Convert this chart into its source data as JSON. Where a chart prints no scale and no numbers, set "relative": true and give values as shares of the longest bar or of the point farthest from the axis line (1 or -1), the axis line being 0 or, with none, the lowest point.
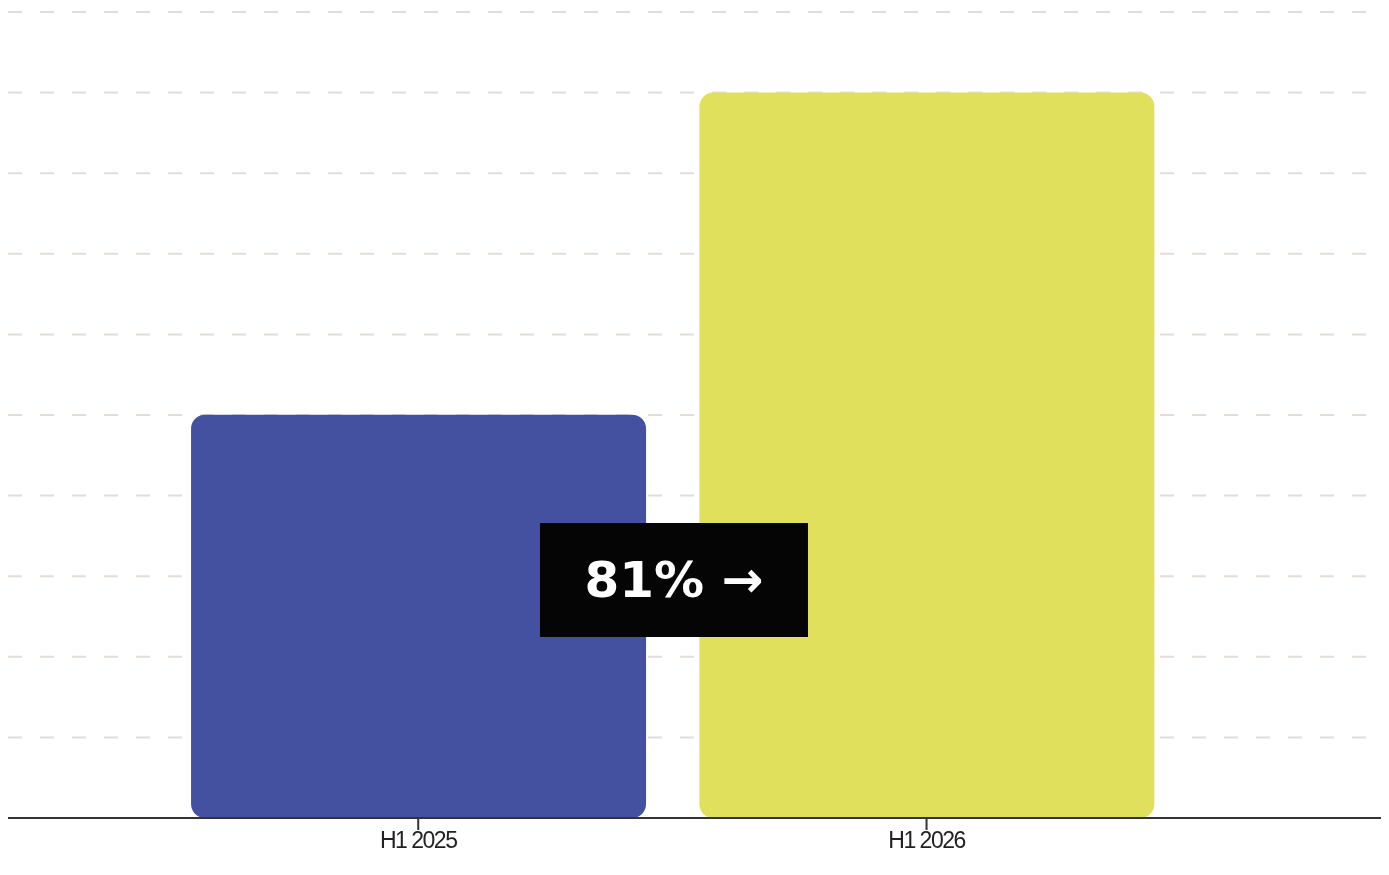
{
  "chart_data": {
    "type": "bar",
    "relative": true,
    "categories": [
      "H1 2025",
      "H1 2026"
    ],
    "values": [
      0.556,
      1
    ],
    "colors": [
      "#4450a0",
      "#e0e05c"
    ],
    "grid": "y",
    "annotations": [
      "81% →"
    ]
  }
}
